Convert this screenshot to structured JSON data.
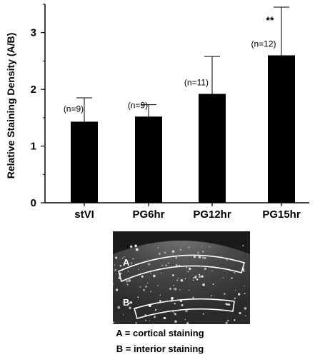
{
  "chart_data": {
    "type": "bar",
    "categories": [
      "stVI",
      "PG6hr",
      "PG12hr",
      "PG15hr"
    ],
    "values": [
      1.43,
      1.52,
      1.92,
      2.6
    ],
    "error_upper": [
      1.85,
      1.73,
      2.58,
      3.45
    ],
    "n_labels": [
      "(n=9)",
      "(n=9)",
      "(n=11)",
      "(n=12)"
    ],
    "significance": [
      "",
      "",
      "*",
      "**"
    ],
    "title": "",
    "xlabel": "",
    "ylabel": "Relative Staining Density (A/B)",
    "ylim": [
      0,
      3.5
    ],
    "yticks": [
      0,
      1,
      2,
      3
    ],
    "bar_color": "#000000",
    "grid": false,
    "legend": "none"
  },
  "micrograph": {
    "region_a_letter": "A",
    "region_b_letter": "B",
    "background_color": "#2e2e2e",
    "outline_color": "#ffffff"
  },
  "captions": {
    "a": "A = cortical staining",
    "b": "B = interior staining"
  }
}
